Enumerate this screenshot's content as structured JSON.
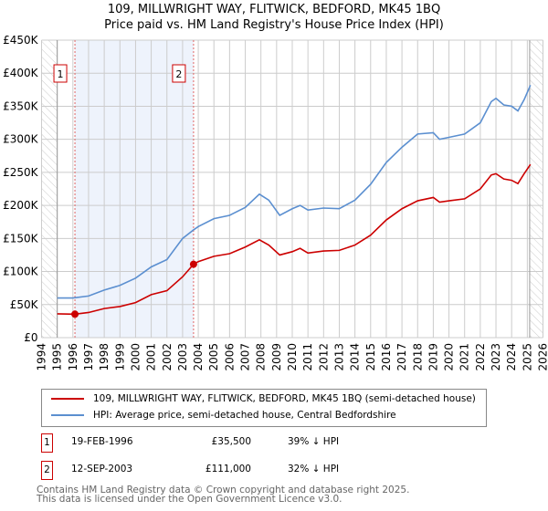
{
  "chart_data": {
    "type": "line",
    "title": "109, MILLWRIGHT WAY, FLITWICK, BEDFORD, MK45 1BQ",
    "subtitle": "Price paid vs. HM Land Registry's House Price Index (HPI)",
    "xlim": [
      1994,
      2026
    ],
    "ylim": [
      0,
      450000
    ],
    "yticks": [
      0,
      50000,
      100000,
      150000,
      200000,
      250000,
      300000,
      350000,
      400000,
      450000
    ],
    "ytick_labels": [
      "£0",
      "£50K",
      "£100K",
      "£150K",
      "£200K",
      "£250K",
      "£300K",
      "£350K",
      "£400K",
      "£450K"
    ],
    "xticks": [
      "1994",
      "1995",
      "1996",
      "1997",
      "1998",
      "1999",
      "2000",
      "2001",
      "2002",
      "2003",
      "2004",
      "2005",
      "2006",
      "2007",
      "2008",
      "2009",
      "2010",
      "2011",
      "2012",
      "2013",
      "2014",
      "2015",
      "2016",
      "2017",
      "2018",
      "2019",
      "2020",
      "2021",
      "2022",
      "2023",
      "2024",
      "2025",
      "2026"
    ],
    "grid": true,
    "series": [
      {
        "name": "109, MILLWRIGHT WAY, FLITWICK, BEDFORD, MK45 1BQ (semi-detached house)",
        "color": "#cc0000",
        "x": [
          1995,
          1996.13,
          1997,
          1998,
          1999,
          2000,
          2001,
          2002,
          2003,
          2003.7,
          2004,
          2005,
          2006,
          2007,
          2007.9,
          2008.5,
          2009.2,
          2010,
          2010.5,
          2011,
          2012,
          2013,
          2014,
          2015,
          2016,
          2017,
          2018,
          2019,
          2019.4,
          2020,
          2021,
          2022,
          2022.7,
          2023,
          2023.5,
          2024,
          2024.4,
          2024.8,
          2025.2
        ],
        "y": [
          36000,
          35500,
          38000,
          44000,
          47000,
          53000,
          65000,
          71000,
          92000,
          111000,
          115000,
          123000,
          127000,
          137000,
          148000,
          140000,
          125000,
          130000,
          135000,
          128000,
          131000,
          132000,
          140000,
          155000,
          178000,
          195000,
          207000,
          212000,
          205000,
          207000,
          210000,
          225000,
          246000,
          248000,
          240000,
          238000,
          233000,
          248000,
          262000
        ]
      },
      {
        "name": "HPI: Average price, semi-detached house, Central Bedfordshire",
        "color": "#5b8fd0",
        "x": [
          1995,
          1996,
          1997,
          1998,
          1999,
          2000,
          2001,
          2002,
          2003,
          2003.7,
          2004,
          2005,
          2006,
          2007,
          2007.9,
          2008.5,
          2009.2,
          2010,
          2010.5,
          2011,
          2012,
          2013,
          2014,
          2015,
          2016,
          2017,
          2018,
          2019,
          2019.4,
          2020,
          2021,
          2022,
          2022.7,
          2023,
          2023.5,
          2024,
          2024.4,
          2024.8,
          2025.2
        ],
        "y": [
          60000,
          60000,
          63000,
          72000,
          79000,
          90000,
          107000,
          118000,
          150000,
          163000,
          168000,
          180000,
          185000,
          197000,
          217000,
          208000,
          185000,
          195000,
          200000,
          193000,
          196000,
          195000,
          208000,
          232000,
          265000,
          288000,
          308000,
          310000,
          300000,
          303000,
          308000,
          325000,
          357000,
          362000,
          352000,
          350000,
          343000,
          360000,
          382000
        ]
      }
    ],
    "sales": [
      {
        "label": "1",
        "x": 1996.13,
        "y": 35500
      },
      {
        "label": "2",
        "x": 2003.7,
        "y": 111000
      }
    ]
  },
  "legend": {
    "red": "109, MILLWRIGHT WAY, FLITWICK, BEDFORD, MK45 1BQ (semi-detached house)",
    "blue": "HPI: Average price, semi-detached house, Central Bedfordshire"
  },
  "table": [
    {
      "num": "1",
      "date": "19-FEB-1996",
      "price": "£35,500",
      "hpi": "39% ↓ HPI"
    },
    {
      "num": "2",
      "date": "12-SEP-2003",
      "price": "£111,000",
      "hpi": "32% ↓ HPI"
    }
  ],
  "footer": {
    "line1": "Contains HM Land Registry data © Crown copyright and database right 2025.",
    "line2": "This data is licensed under the Open Government Licence v3.0."
  }
}
